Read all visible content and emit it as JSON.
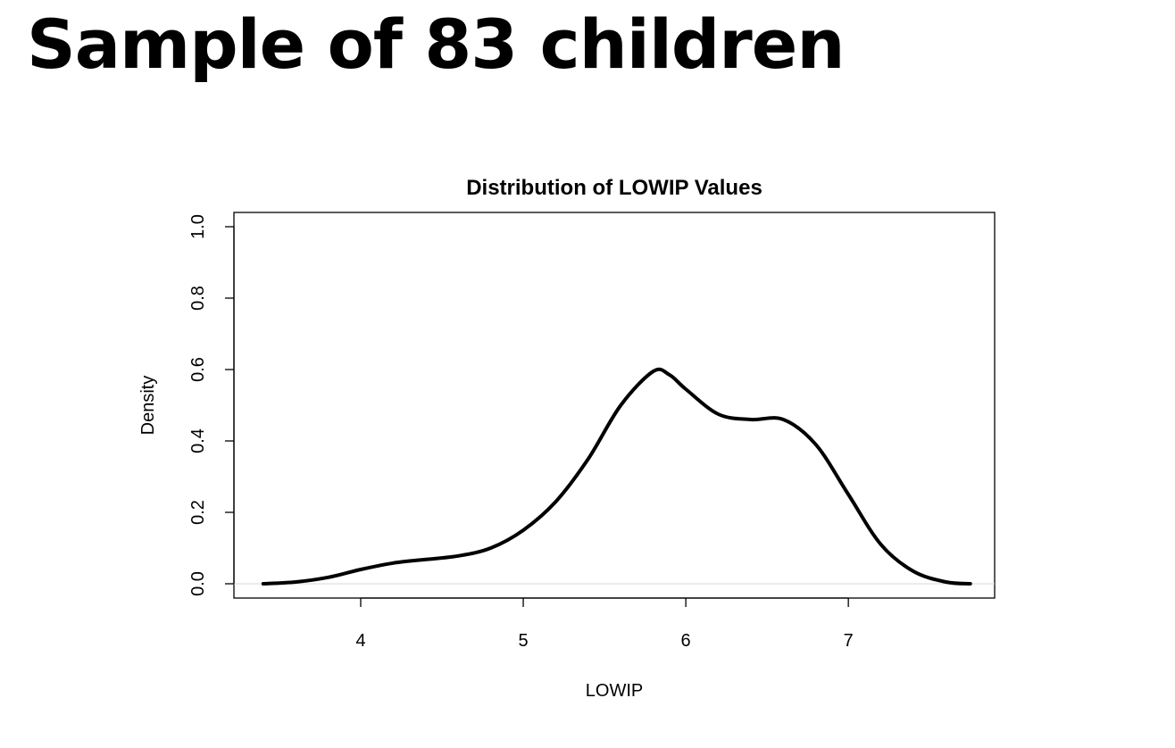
{
  "slide": {
    "title": "Sample of 83 children"
  },
  "chart_data": {
    "type": "line",
    "title": "Distribution of LOWIP Values",
    "xlabel": "LOWIP",
    "ylabel": "Density",
    "xlim": [
      3.22,
      7.9
    ],
    "ylim": [
      -0.04,
      1.04
    ],
    "xticks": [
      4,
      5,
      6,
      7
    ],
    "yticks": [
      0.0,
      0.2,
      0.4,
      0.6,
      0.8,
      1.0
    ],
    "ytick_labels": [
      "0.0",
      "0.2",
      "0.4",
      "0.6",
      "0.8",
      "1.0"
    ],
    "grid": false,
    "series": [
      {
        "color": "#000000",
        "x": [
          3.4,
          3.6,
          3.8,
          4.0,
          4.2,
          4.4,
          4.6,
          4.8,
          5.0,
          5.2,
          5.4,
          5.6,
          5.8,
          5.9,
          6.0,
          6.2,
          6.4,
          6.6,
          6.8,
          7.0,
          7.2,
          7.4,
          7.6,
          7.75
        ],
        "y": [
          0.0,
          0.005,
          0.018,
          0.04,
          0.058,
          0.068,
          0.078,
          0.1,
          0.15,
          0.23,
          0.35,
          0.5,
          0.595,
          0.585,
          0.545,
          0.475,
          0.46,
          0.46,
          0.39,
          0.25,
          0.11,
          0.035,
          0.005,
          0.0
        ]
      }
    ]
  }
}
